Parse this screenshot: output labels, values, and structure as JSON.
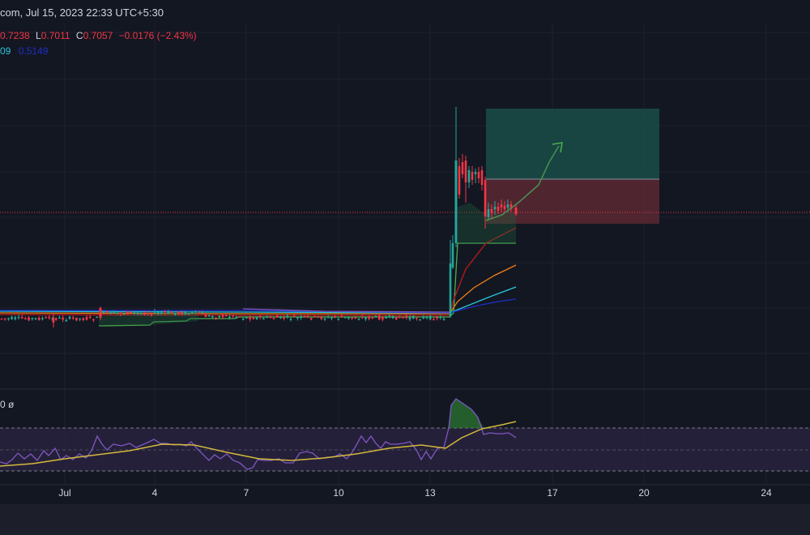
{
  "header": {
    "title": "com, Jul 15, 2023 22:33 UTC+5:30"
  },
  "ohlc": {
    "open_value": "0.7238",
    "low_label": "L",
    "low_value": "0.7011",
    "close_label": "C",
    "close_value": "0.7057",
    "change": "−0.0176 (−2.43%)"
  },
  "ma_legend": {
    "value_a": "09",
    "value_b": "0.5149"
  },
  "rsi_legend": {
    "label": "0  ø"
  },
  "colors": {
    "background": "#131722",
    "up": "#26a69a",
    "down": "#f23645",
    "rsi_line": "#7e57c2",
    "rsi_ma": "#d4b93c",
    "ma_red": "#b71c1c",
    "ma_orange": "#f57f17",
    "ma_teal": "#26c6da",
    "ma_blue": "#1e2fc8",
    "ma_green": "#4caf50",
    "profit_zone": "#1a4d47",
    "loss_zone": "#5b2833"
  },
  "chart_data": {
    "type": "line",
    "description_note": "",
    "x_ticks": [
      "Jul",
      "4",
      "7",
      "10",
      "13",
      "17",
      "20",
      "24"
    ],
    "price_series": {
      "pre_breakout_level": 0.5149,
      "spike_high_day": 13.7,
      "last_close": 0.7057,
      "open": 0.7238,
      "low": 0.7011,
      "change": -0.0176,
      "change_pct": -2.43
    },
    "position_tool": {
      "entry": 0.7057,
      "target_zone": "profit",
      "stop_zone": "loss"
    },
    "rsi": {
      "upper_band": 70,
      "middle_band": 50,
      "lower_band": 30
    },
    "grid": true
  }
}
